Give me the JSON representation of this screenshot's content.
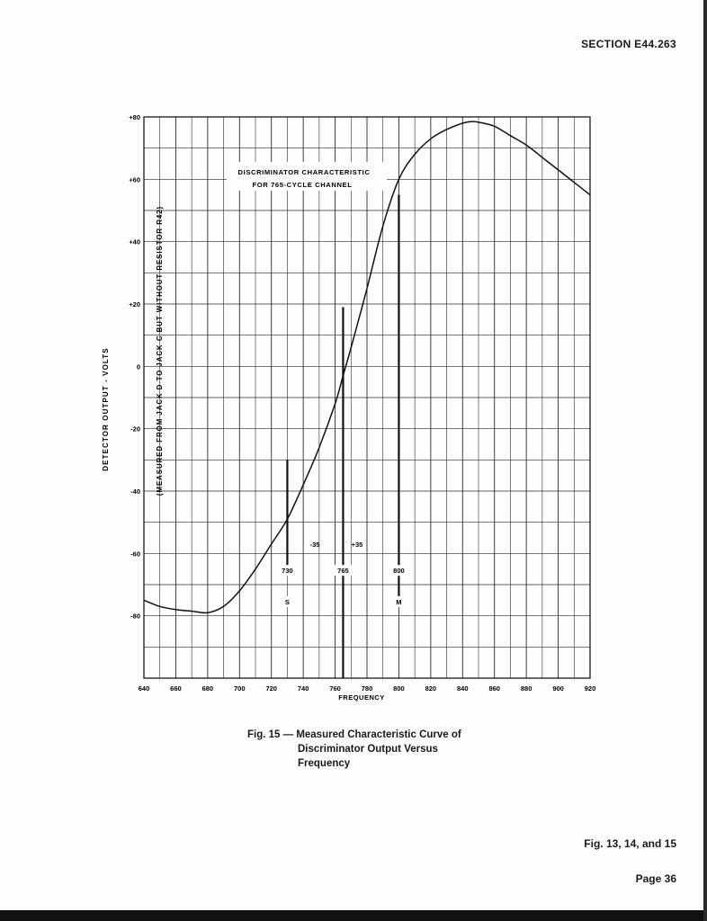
{
  "header": {
    "section": "SECTION E44.263"
  },
  "chart_data": {
    "type": "line",
    "title_lines": [
      "DISCRIMINATOR CHARACTERISTIC",
      "FOR 765-CYCLE CHANNEL"
    ],
    "xlabel": "FREQUENCY",
    "ylabel": "DETECTOR OUTPUT - VOLTS",
    "ylabel_sub": "(MEASURED FROM JACK D TO JACK C BUT WITHOUT RESISTOR R42)",
    "xlim": [
      640,
      920
    ],
    "ylim": [
      -100,
      80
    ],
    "x_ticks": [
      640,
      660,
      680,
      700,
      720,
      740,
      760,
      780,
      800,
      820,
      840,
      860,
      880,
      900,
      920
    ],
    "x_tick_labels": [
      "640",
      "660",
      "680",
      "700",
      "720",
      "740",
      "760",
      "780",
      "800",
      "820",
      "840",
      "860",
      "880",
      "900",
      "920"
    ],
    "y_ticks": [
      80,
      60,
      40,
      20,
      0,
      -20,
      -40,
      -60,
      -80
    ],
    "y_tick_labels": [
      "+80",
      "+60",
      "+40",
      "+20",
      "0",
      "-20",
      "-40",
      "-60",
      "-80"
    ],
    "grid": true,
    "series": [
      {
        "name": "Detector Output",
        "x": [
          640,
          650,
          660,
          670,
          680,
          690,
          700,
          710,
          720,
          730,
          740,
          750,
          760,
          765,
          770,
          780,
          790,
          800,
          810,
          820,
          830,
          840,
          845,
          850,
          860,
          870,
          880,
          890,
          900,
          910,
          920
        ],
        "y": [
          -75,
          -77,
          -78,
          -78.5,
          -79,
          -77,
          -72,
          -65,
          -57,
          -49,
          -38,
          -26,
          -12,
          -3,
          6,
          25,
          45,
          60,
          68,
          73,
          76,
          78,
          78.5,
          78.3,
          77,
          74,
          71,
          67,
          63,
          59,
          55
        ]
      }
    ],
    "markers": [
      {
        "x": 730,
        "label": "730",
        "sub": "S",
        "y_top": -30,
        "y_bottom": -66
      },
      {
        "x": 765,
        "label": "765",
        "sub": "",
        "y_top": 19,
        "y_bottom": -100
      },
      {
        "x": 800,
        "label": "800",
        "sub": "M",
        "y_top": 55,
        "y_bottom": -74
      }
    ],
    "annotations": [
      "-35",
      "+35"
    ]
  },
  "caption": {
    "line1": "Fig. 15 — Measured Characteristic Curve of",
    "line2": "Discriminator Output Versus",
    "line3": "Frequency"
  },
  "footer": {
    "figs": "Fig. 13, 14, and 15",
    "page": "Page 36"
  }
}
